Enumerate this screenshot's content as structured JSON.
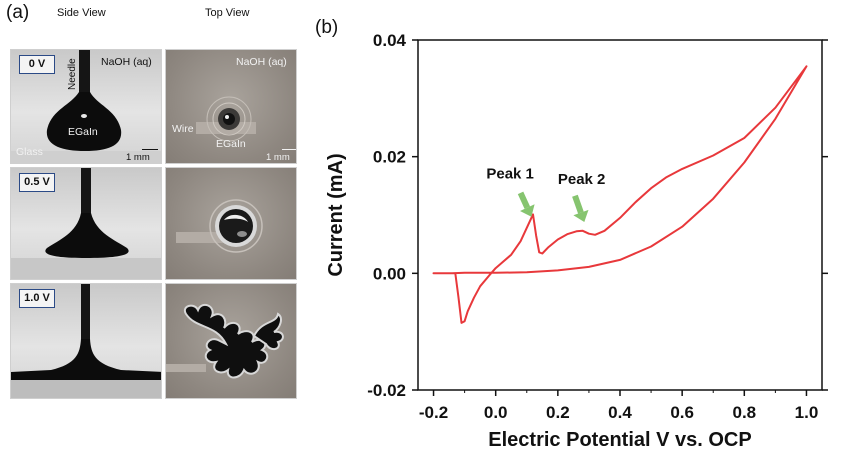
{
  "panel_a": {
    "label": "(a)",
    "side_title": "Side View",
    "top_title": "Top View",
    "rows": [
      {
        "voltage": "0 V",
        "side": {
          "needle": "Needle",
          "solution": "NaOH (aq)",
          "droplet": "EGaIn",
          "substrate": "Glass",
          "scale": "1 mm"
        },
        "top": {
          "solution": "NaOH (aq)",
          "wire": "Wire",
          "droplet": "EGaIn",
          "scale": "1 mm"
        }
      },
      {
        "voltage": "0.5 V"
      },
      {
        "voltage": "1.0 V"
      }
    ]
  },
  "panel_b": {
    "label": "(b)",
    "annotations": {
      "peak1": "Peak 1",
      "peak2": "Peak 2"
    },
    "colors": {
      "curve": "#e8383b",
      "arrow": "#86c46f",
      "axis": "#111111"
    }
  },
  "chart_data": {
    "type": "line",
    "xlabel": "Electric Potential V vs. OCP",
    "ylabel": "Current (mA)",
    "xlim": [
      -0.25,
      1.05
    ],
    "ylim": [
      -0.02,
      0.04
    ],
    "xticks": [
      "-0.2",
      "0.0",
      "0.2",
      "0.4",
      "0.6",
      "0.8",
      "1.0"
    ],
    "xtick_values": [
      -0.2,
      0.0,
      0.2,
      0.4,
      0.6,
      0.8,
      1.0
    ],
    "yticks": [
      "-0.02",
      "0.00",
      "0.02",
      "0.04"
    ],
    "ytick_values": [
      -0.02,
      0.0,
      0.02,
      0.04
    ],
    "grid": false,
    "series": [
      {
        "x": [
          -0.2,
          -0.14,
          -0.13,
          -0.12,
          -0.11,
          -0.1,
          -0.09,
          -0.07,
          -0.05,
          -0.02,
          0.0,
          0.02,
          0.05,
          0.08,
          0.1,
          0.12,
          0.13,
          0.14,
          0.15,
          0.17,
          0.2,
          0.23,
          0.26,
          0.28,
          0.3,
          0.32,
          0.35,
          0.4,
          0.45,
          0.5,
          0.55,
          0.6,
          0.7,
          0.8,
          0.9,
          1.0,
          0.9,
          0.8,
          0.7,
          0.6,
          0.5,
          0.4,
          0.3,
          0.2,
          0.1,
          0.0,
          -0.05,
          -0.1,
          -0.14
        ],
        "y": [
          0.0,
          0.0,
          0.0,
          -0.004,
          -0.0085,
          -0.0082,
          -0.0065,
          -0.0042,
          -0.0022,
          -0.0003,
          0.0009,
          0.0018,
          0.0032,
          0.0055,
          0.0078,
          0.0101,
          0.0065,
          0.0036,
          0.0034,
          0.0045,
          0.0058,
          0.0067,
          0.0072,
          0.0073,
          0.0068,
          0.0066,
          0.0073,
          0.0095,
          0.0122,
          0.0146,
          0.0165,
          0.0179,
          0.0202,
          0.0232,
          0.0284,
          0.0355,
          0.0265,
          0.019,
          0.0128,
          0.008,
          0.0046,
          0.0023,
          0.0011,
          0.0005,
          0.0002,
          0.0001,
          0.0001,
          0.0001,
          0.0
        ]
      }
    ]
  }
}
